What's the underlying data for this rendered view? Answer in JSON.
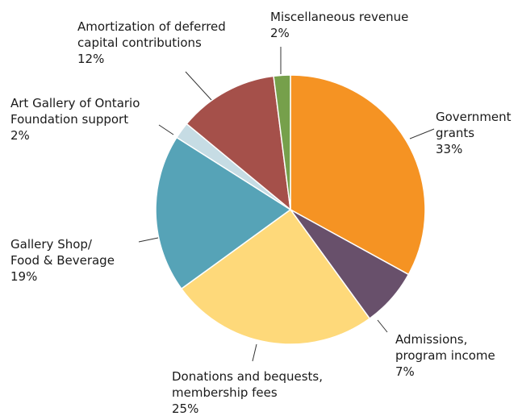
{
  "chart_data": {
    "type": "pie",
    "title": "",
    "start_angle_deg": 0,
    "direction": "clockwise",
    "slices": [
      {
        "label_lines": [
          "Government",
          "grants"
        ],
        "value_label": "33%",
        "value": 33,
        "color": "#F59323"
      },
      {
        "label_lines": [
          "Admissions,",
          "program income"
        ],
        "value_label": "7%",
        "value": 7,
        "color": "#68506B"
      },
      {
        "label_lines": [
          "Donations and bequests,",
          "membership fees"
        ],
        "value_label": "25%",
        "value": 25,
        "color": "#FED97A"
      },
      {
        "label_lines": [
          "Gallery Shop/",
          "Food & Beverage"
        ],
        "value_label": "19%",
        "value": 19,
        "color": "#56A3B7"
      },
      {
        "label_lines": [
          "Art Gallery of Ontario",
          "Foundation support"
        ],
        "value_label": "2%",
        "value": 2,
        "color": "#C6DCE4"
      },
      {
        "label_lines": [
          "Amortization of deferred",
          "capital contributions"
        ],
        "value_label": "12%",
        "value": 12,
        "color": "#A5504A"
      },
      {
        "label_lines": [
          "Miscellaneous revenue"
        ],
        "value_label": "2%",
        "value": 2,
        "color": "#76A04B"
      }
    ]
  }
}
